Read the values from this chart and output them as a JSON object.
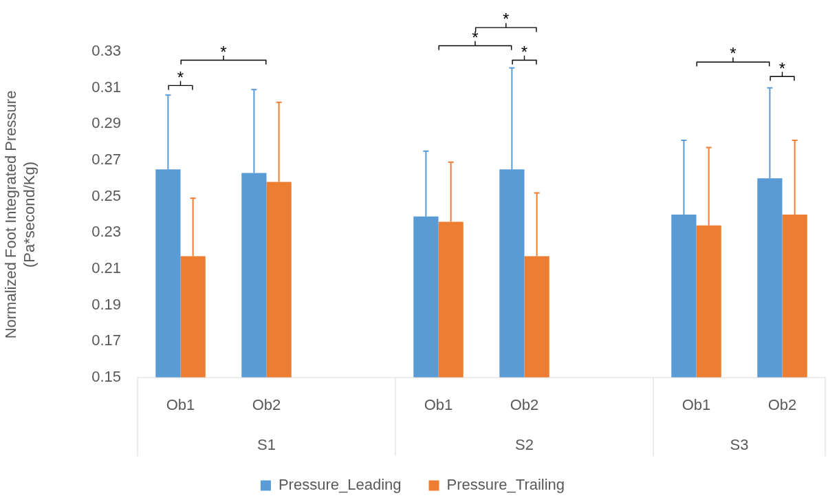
{
  "chart_data": {
    "type": "bar",
    "ylabel": "Normalized Foot Integrated Pressure\n(Pa*second/Kg)",
    "categories": [
      "Ob1",
      "Ob2",
      null,
      "Ob1",
      "Ob2",
      null,
      "Ob1",
      "Ob2"
    ],
    "series": [
      {
        "name": "Pressure_Leading",
        "color": "#5b9bd5",
        "values": [
          0.265,
          0.263,
          null,
          0.239,
          0.265,
          null,
          0.24,
          0.26
        ],
        "errors": [
          [
            0.265,
            0.306
          ],
          [
            0.263,
            0.309
          ],
          null,
          [
            0.239,
            0.275
          ],
          [
            0.265,
            0.321
          ],
          null,
          [
            0.24,
            0.281
          ],
          [
            0.26,
            0.31
          ]
        ]
      },
      {
        "name": "Pressure_Trailing",
        "color": "#ed7d31",
        "values": [
          0.217,
          0.258,
          null,
          0.236,
          0.217,
          null,
          0.234,
          0.24
        ],
        "errors": [
          [
            0.217,
            0.249
          ],
          [
            0.258,
            0.302
          ],
          null,
          [
            0.236,
            0.269
          ],
          [
            0.217,
            0.252
          ],
          null,
          [
            0.234,
            0.277
          ],
          [
            0.24,
            0.281
          ]
        ]
      }
    ],
    "ylim": [
      0.15,
      0.33
    ],
    "yticks": [
      0.15,
      0.17,
      0.19,
      0.21,
      0.23,
      0.25,
      0.27,
      0.29,
      0.31,
      0.33
    ],
    "grid": false,
    "legend": "bottom",
    "annotations": [
      "S1",
      "S2",
      "S3",
      "*",
      "*",
      "*",
      "*",
      "*",
      "*",
      "*"
    ]
  }
}
